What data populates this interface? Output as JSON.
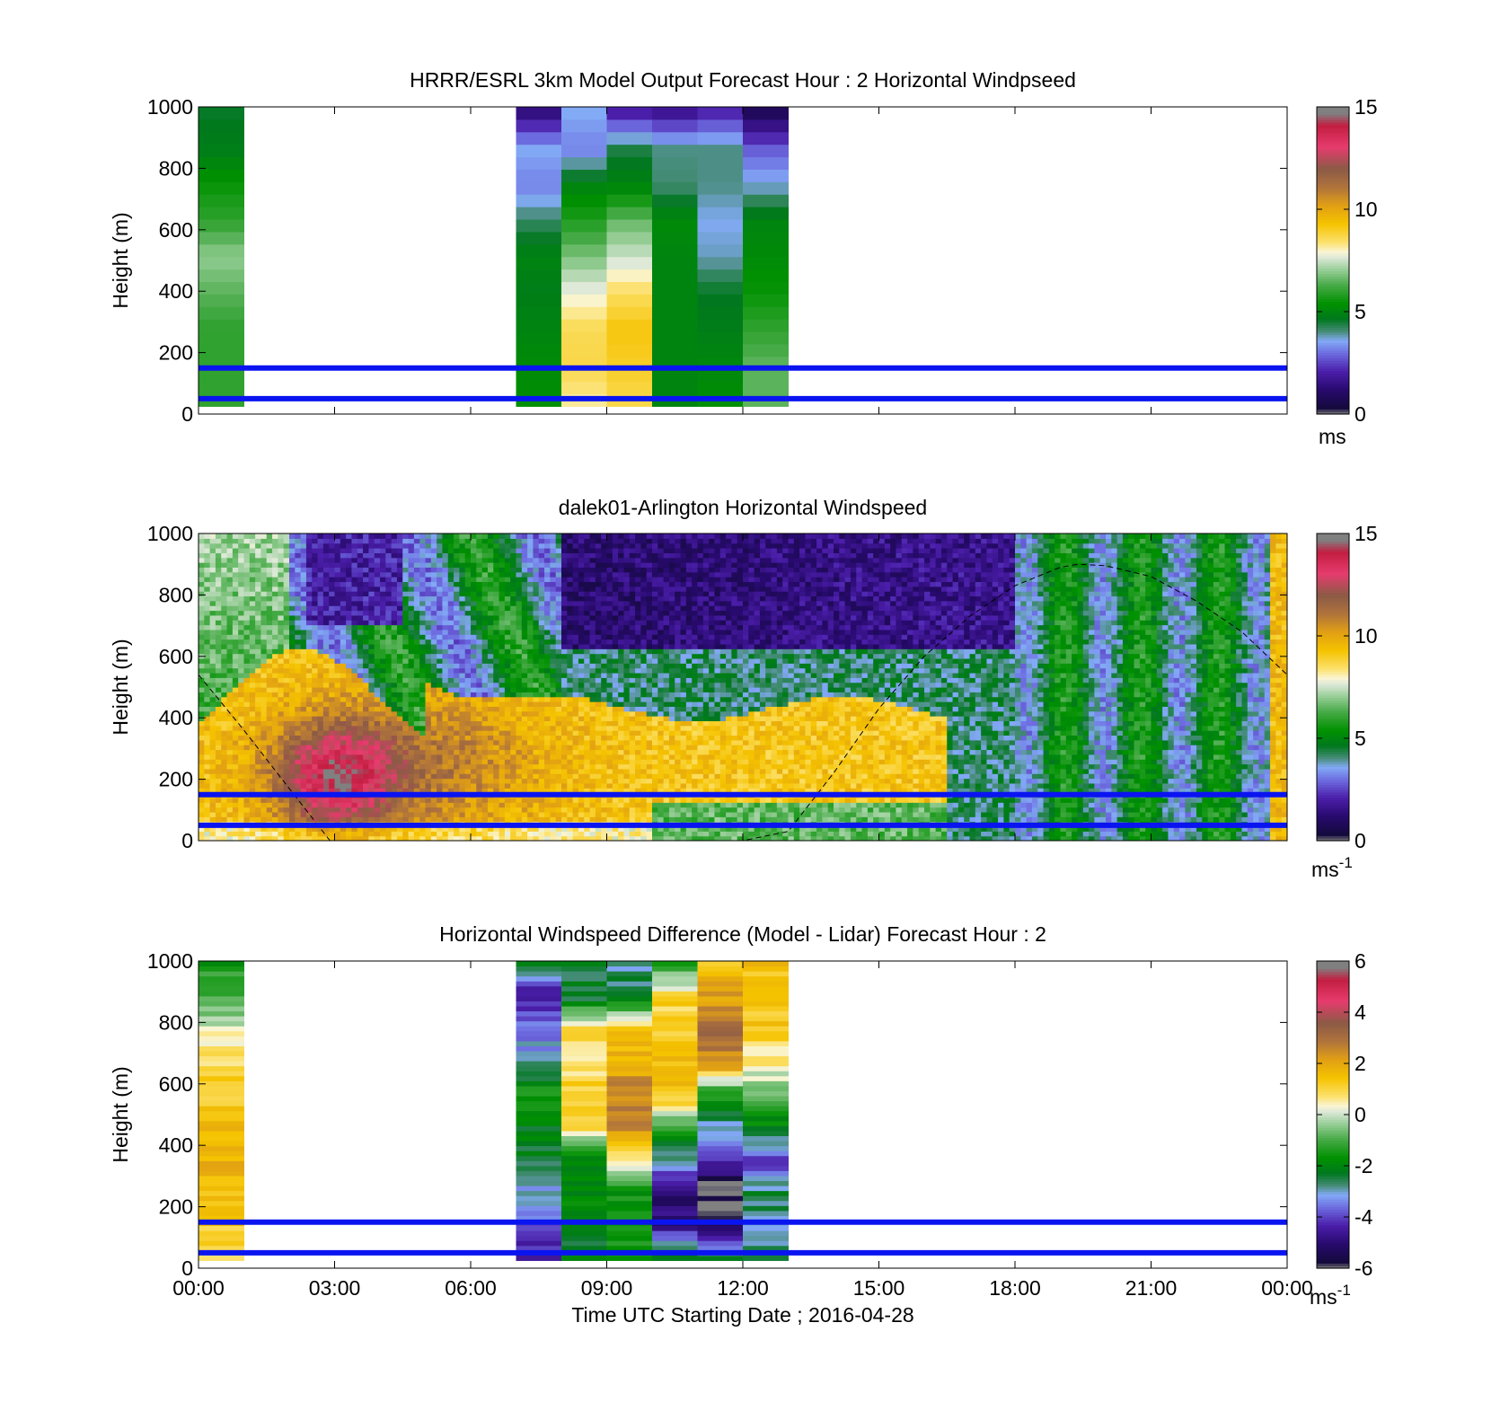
{
  "chart_data": [
    {
      "type": "heatmap",
      "title": "HRRR/ESRL 3km Model Output   Forecast Hour : 2 Horizontal Windpseed",
      "ylabel": "Height (m)",
      "ylim": [
        0,
        1000
      ],
      "yticks": [
        "0",
        "200",
        "400",
        "600",
        "800",
        "1000"
      ],
      "xlim_hours": [
        0,
        24
      ],
      "xticks": [
        "00:00",
        "03:00",
        "06:00",
        "09:00",
        "12:00",
        "15:00",
        "18:00",
        "21:00",
        "00:00"
      ],
      "colorbar": {
        "min": 0,
        "max": 15,
        "ticks": [
          "0",
          "5",
          "10",
          "15"
        ],
        "unit": "ms"
      },
      "reference_lines_m": [
        50,
        150
      ],
      "data_hours": [
        0,
        7,
        8,
        9,
        10,
        11,
        12
      ],
      "data_height_range_m": [
        25,
        1000
      ],
      "values_m_s": [
        [
          6,
          6,
          6,
          6.5,
          7,
          6,
          5.5,
          4.8,
          4.6
        ],
        [
          5.3,
          5.2,
          5,
          4.8,
          5,
          4.2,
          3.2,
          3.6,
          1.5
        ],
        [
          8.2,
          8.7,
          8.6,
          7.8,
          6.8,
          5.8,
          5,
          3.2,
          3.6
        ],
        [
          8.7,
          9.0,
          9.2,
          8.5,
          7.5,
          6.6,
          5,
          4.4,
          2.1
        ],
        [
          5,
          5,
          5,
          5,
          5,
          5.2,
          4.1,
          4.0,
          1.8
        ],
        [
          5.3,
          5.1,
          4.8,
          4.6,
          3.8,
          3.6,
          4.0,
          4.0,
          2.2
        ],
        [
          6.5,
          6.5,
          6.0,
          5.5,
          5.2,
          5.0,
          3.7,
          2.8,
          0.9
        ]
      ]
    },
    {
      "type": "heatmap",
      "title": "dalek01-Arlington  Horizontal Windspeed",
      "ylabel": "Height (m)",
      "ylim": [
        0,
        1000
      ],
      "yticks": [
        "0",
        "200",
        "400",
        "600",
        "800",
        "1000"
      ],
      "xlim_hours": [
        0,
        24
      ],
      "colorbar": {
        "min": 0,
        "max": 15,
        "ticks": [
          "0",
          "5",
          "10",
          "15"
        ],
        "unit": "ms",
        "unit_exp": "-1"
      },
      "reference_lines_m": [
        50,
        150
      ],
      "boundary_layer_curve": {
        "hours": [
          0,
          1,
          2,
          2.9,
          4,
          6,
          8,
          10,
          12,
          13,
          14,
          15,
          16,
          17,
          18,
          19,
          19.4,
          20,
          21,
          22,
          23,
          24
        ],
        "height_m": [
          540,
          360,
          170,
          0,
          0,
          0,
          0,
          0,
          0,
          30,
          220,
          430,
          600,
          730,
          830,
          890,
          900,
          895,
          860,
          780,
          680,
          540
        ]
      },
      "jet_max_m_s": 13,
      "jet_center": {
        "hour": 3.0,
        "height_m": 200
      }
    },
    {
      "type": "heatmap",
      "title": "Horizontal Windspeed Difference (Model - Lidar) Forecast Hour : 2",
      "ylabel": "Height (m)",
      "xlabel": "Time UTC  Starting Date ; 2016-04-28",
      "ylim": [
        0,
        1000
      ],
      "yticks": [
        "0",
        "200",
        "400",
        "600",
        "800",
        "1000"
      ],
      "xlim_hours": [
        0,
        24
      ],
      "xticks": [
        "00:00",
        "03:00",
        "06:00",
        "09:00",
        "12:00",
        "15:00",
        "18:00",
        "21:00",
        "00:00"
      ],
      "colorbar": {
        "min": -6,
        "max": 6,
        "ticks": [
          "-6",
          "-4",
          "-2",
          "0",
          "2",
          "4",
          "6"
        ],
        "unit": "ms",
        "unit_exp": "-1"
      },
      "reference_lines_m": [
        50,
        150
      ],
      "data_hours": [
        0,
        7,
        8,
        9,
        10,
        11,
        12
      ],
      "data_height_range_m": [
        25,
        1000
      ],
      "values_m_s": [
        [
          0.6,
          1.2,
          1.5,
          1.8,
          1.5,
          1.2,
          0.8,
          0.2,
          -1.0,
          -1.5
        ],
        [
          -4.3,
          -3.8,
          -3.0,
          -2.5,
          -2.0,
          -1.5,
          -3.0,
          -3.5,
          -4.5,
          -2.5
        ],
        [
          -2.0,
          -2.2,
          -1.8,
          -2.0,
          0.8,
          1.2,
          0.8,
          1.0,
          -2.5,
          -2.5
        ],
        [
          -1.5,
          -1.6,
          -1.5,
          0.5,
          2.4,
          2.7,
          1.8,
          1.2,
          -2.4,
          -2.8
        ],
        [
          -2.0,
          -4.8,
          -5.2,
          -3.0,
          -1.0,
          1.5,
          1.6,
          1.2,
          1.0,
          -1.5
        ],
        [
          -2.6,
          -5.5,
          -6.0,
          -4.5,
          -3.0,
          -1.5,
          2.5,
          3.0,
          2.2,
          1.5
        ],
        [
          -2.5,
          -2.8,
          -2.5,
          -4.0,
          -2.0,
          -0.5,
          0.5,
          1.2,
          1.5,
          1.5
        ]
      ]
    }
  ]
}
